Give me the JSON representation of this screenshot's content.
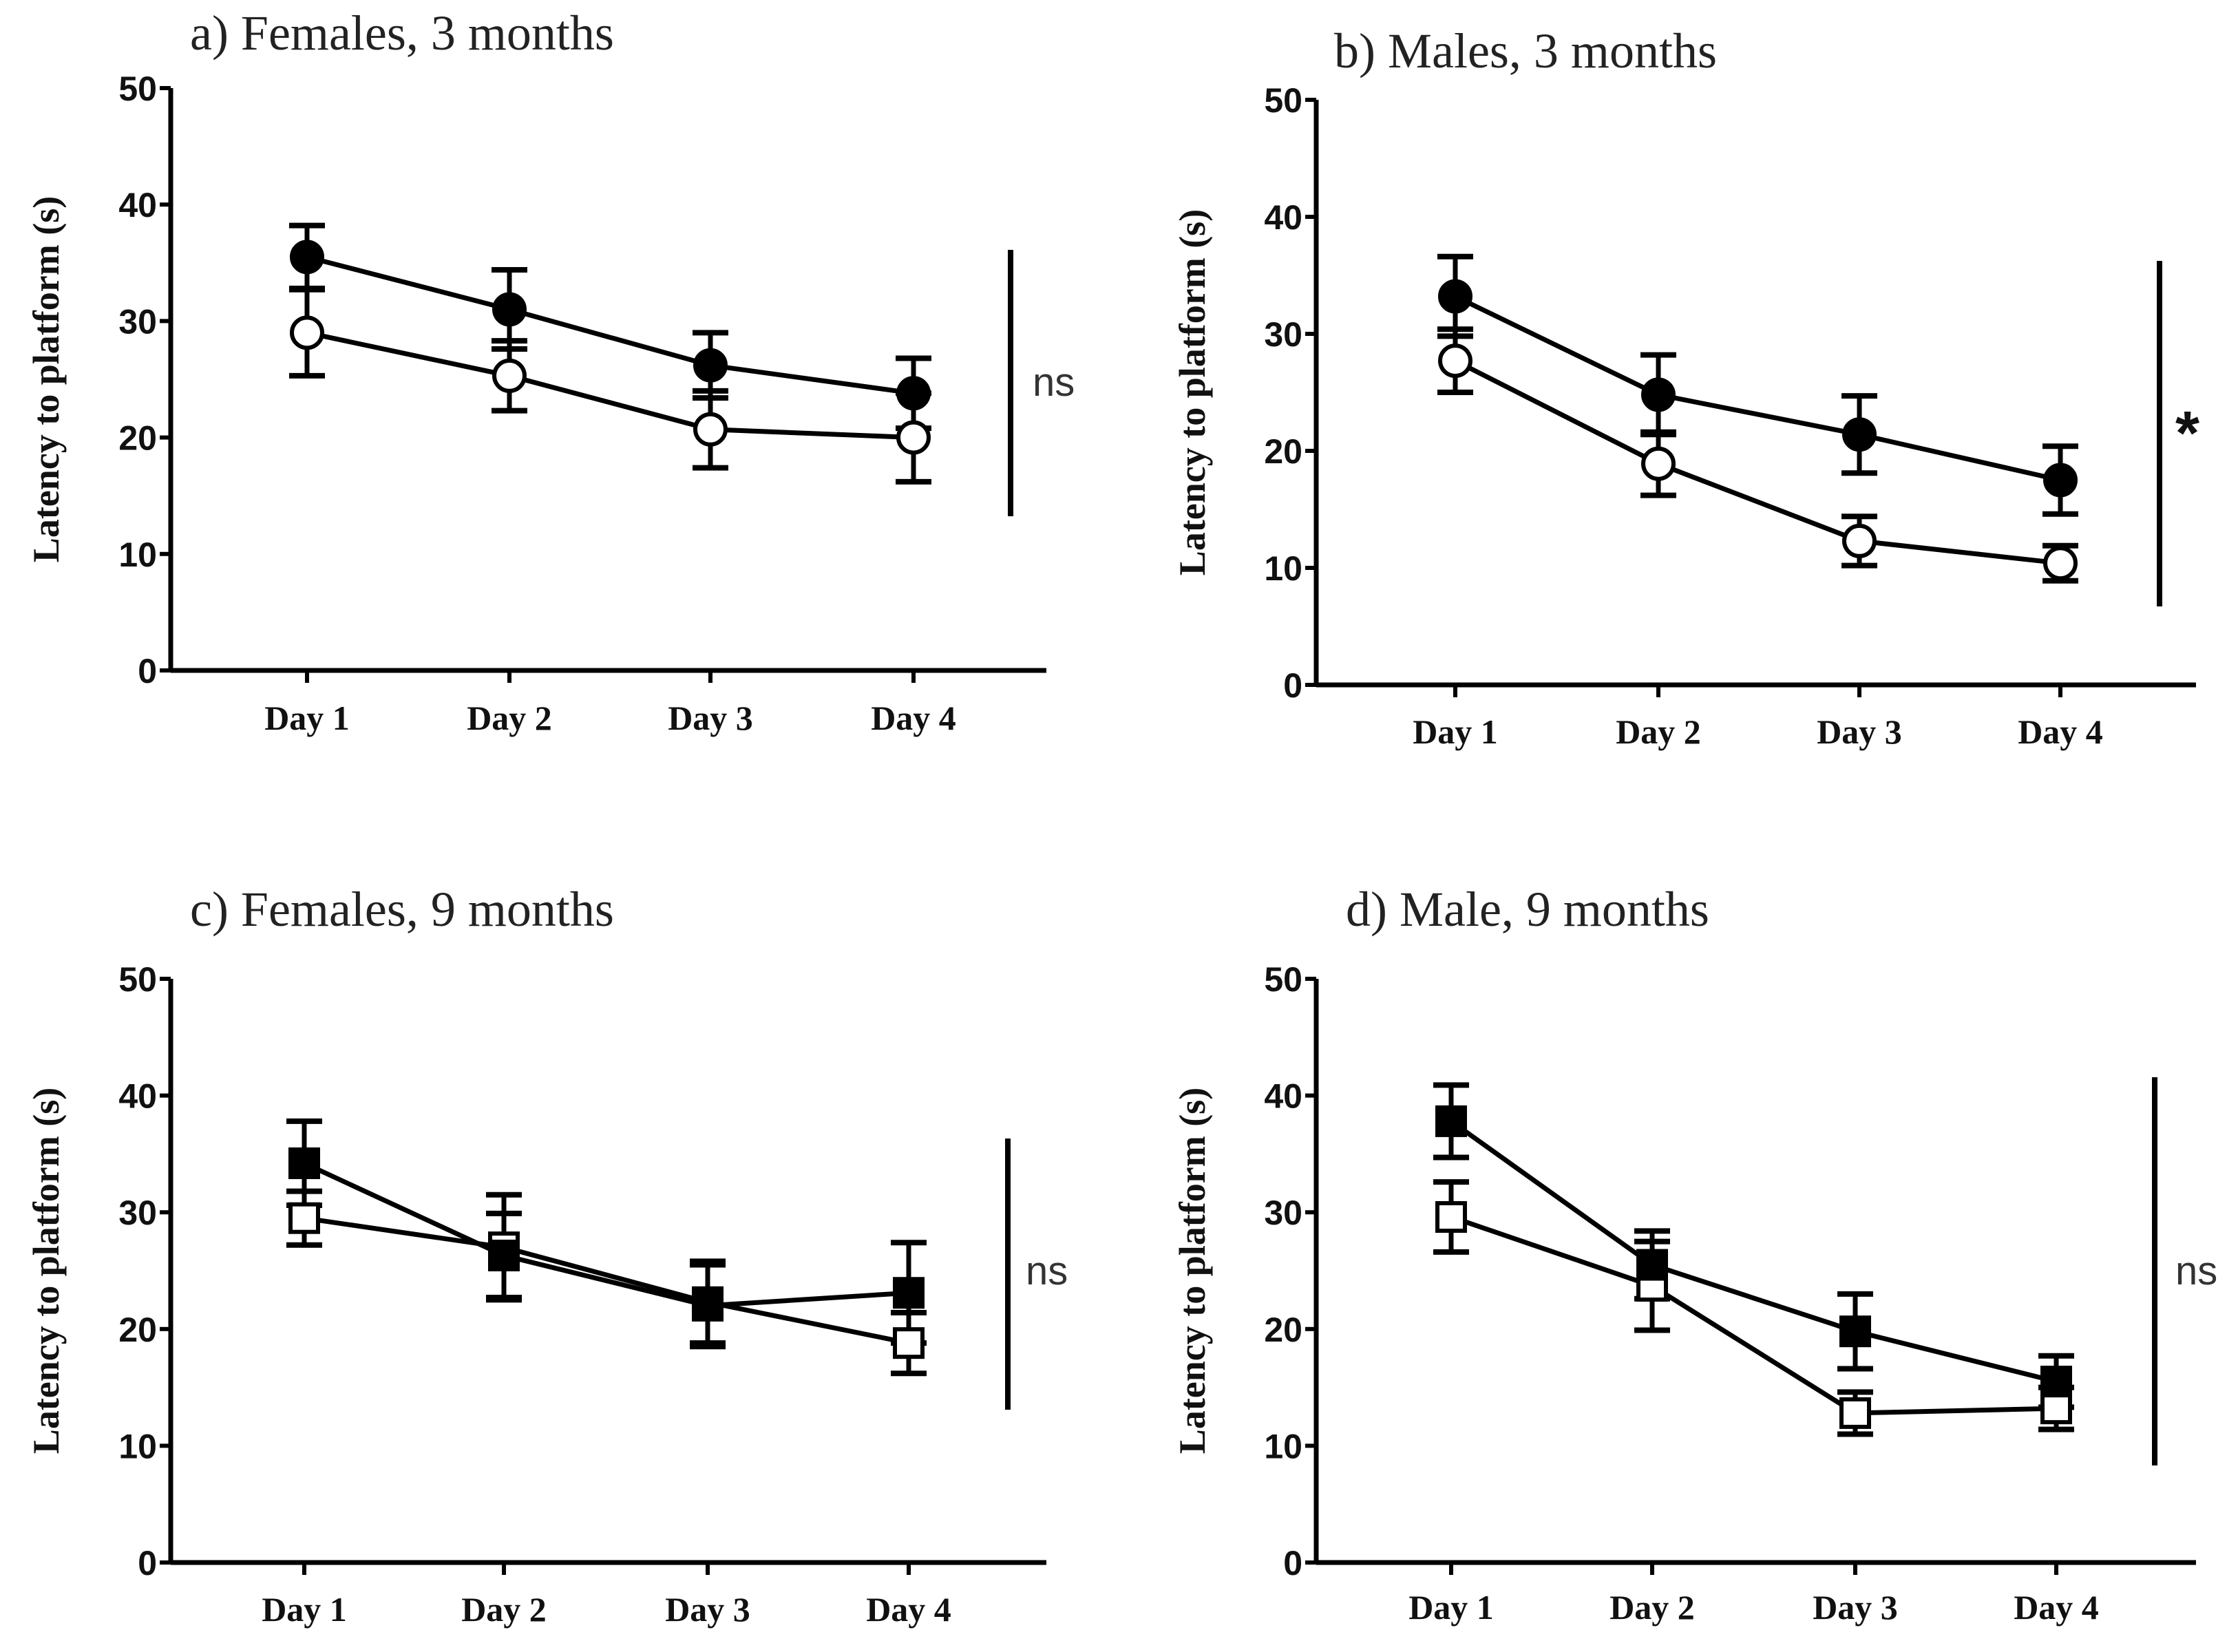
{
  "chart_data": [
    {
      "type": "line",
      "title": "a) Females, 3 months",
      "xlabel": "",
      "ylabel": "Latency to platform (s)",
      "ylim": [
        0,
        50
      ],
      "yticks": [
        "0",
        "10",
        "20",
        "30",
        "40",
        "50"
      ],
      "categories": [
        "Day 1",
        "Day 2",
        "Day 3",
        "Day 4"
      ],
      "marker": "circle",
      "series": [
        {
          "name": "filled",
          "filled": true,
          "values": [
            35.5,
            31.0,
            26.2,
            23.8
          ],
          "errors": [
            2.7,
            3.4,
            2.8,
            3.0
          ]
        },
        {
          "name": "open",
          "filled": false,
          "values": [
            29.0,
            25.3,
            20.7,
            20.0
          ],
          "errors": [
            3.7,
            3.0,
            3.3,
            3.8
          ]
        }
      ],
      "significance": "ns"
    },
    {
      "type": "line",
      "title": "b) Males, 3 months",
      "xlabel": "",
      "ylabel": "Latency to platform (s)",
      "ylim": [
        0,
        50
      ],
      "yticks": [
        "0",
        "10",
        "20",
        "30",
        "40",
        "50"
      ],
      "categories": [
        "Day 1",
        "Day 2",
        "Day 3",
        "Day 4"
      ],
      "marker": "circle",
      "series": [
        {
          "name": "filled",
          "filled": true,
          "values": [
            33.2,
            24.8,
            21.4,
            17.5
          ],
          "errors": [
            3.4,
            3.4,
            3.3,
            2.9
          ]
        },
        {
          "name": "open",
          "filled": false,
          "values": [
            27.7,
            18.9,
            12.3,
            10.4
          ],
          "errors": [
            2.7,
            2.7,
            2.1,
            1.5
          ]
        }
      ],
      "significance": "*"
    },
    {
      "type": "line",
      "title": "c) Females, 9 months",
      "xlabel": "",
      "ylabel": "Latency to platform (s)",
      "ylim": [
        0,
        50
      ],
      "yticks": [
        "0",
        "10",
        "20",
        "30",
        "40",
        "50"
      ],
      "categories": [
        "Day 1",
        "Day 2",
        "Day 3",
        "Day 4"
      ],
      "marker": "square",
      "series": [
        {
          "name": "filled",
          "filled": true,
          "values": [
            34.2,
            26.3,
            22.0,
            23.1
          ],
          "errors": [
            3.6,
            3.6,
            3.5,
            4.3
          ]
        },
        {
          "name": "open",
          "filled": false,
          "values": [
            29.5,
            27.0,
            22.3,
            18.8
          ],
          "errors": [
            2.3,
            4.5,
            3.5,
            2.6
          ]
        }
      ],
      "significance": "ns"
    },
    {
      "type": "line",
      "title": "d) Male, 9 months",
      "xlabel": "",
      "ylabel": "Latency to platform (s)",
      "ylim": [
        0,
        50
      ],
      "yticks": [
        "0",
        "10",
        "20",
        "30",
        "40",
        "50"
      ],
      "categories": [
        "Day 1",
        "Day 2",
        "Day 3",
        "Day 4"
      ],
      "marker": "square",
      "series": [
        {
          "name": "filled",
          "filled": true,
          "values": [
            37.8,
            25.5,
            19.8,
            15.5
          ],
          "errors": [
            3.1,
            2.9,
            3.2,
            2.2
          ]
        },
        {
          "name": "open",
          "filled": false,
          "values": [
            29.6,
            23.7,
            12.8,
            13.2
          ],
          "errors": [
            3.0,
            3.8,
            1.8,
            1.8
          ]
        }
      ],
      "significance": "ns"
    }
  ]
}
